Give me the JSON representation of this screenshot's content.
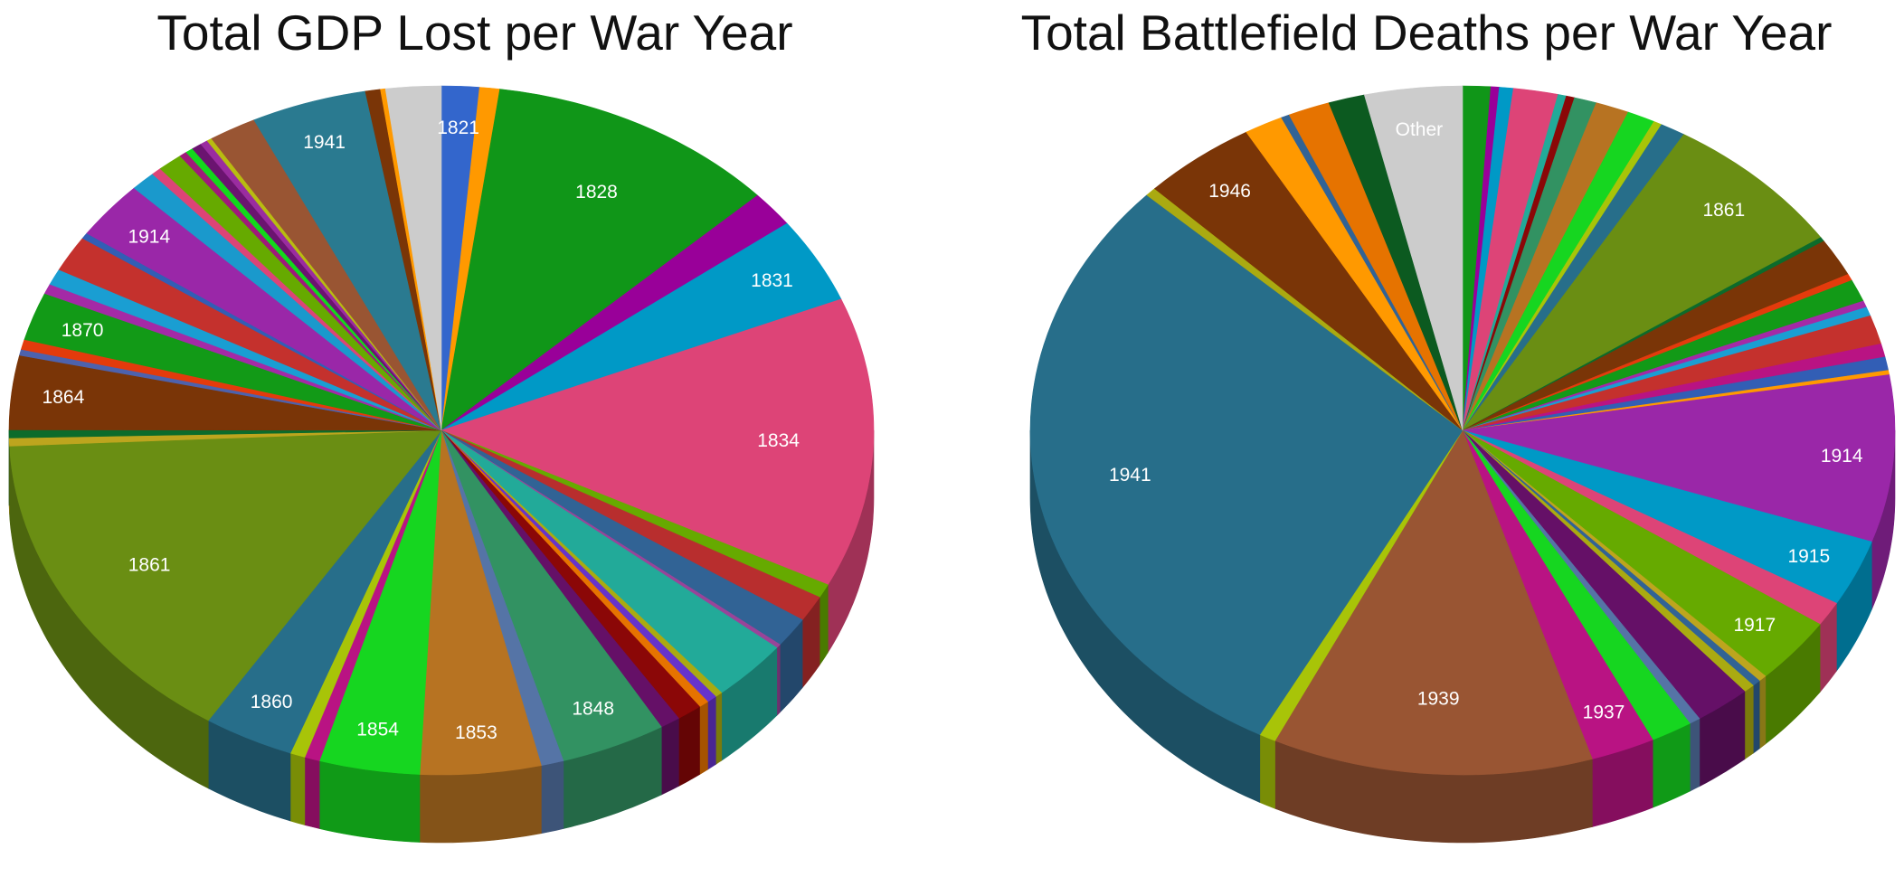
{
  "chart_data": [
    {
      "type": "pie",
      "title": "Total GDP Lost per War Year",
      "slices": [
        {
          "label": "1821",
          "value": 1.5,
          "color": "#3366cc",
          "show_label": true
        },
        {
          "label": "",
          "value": 0.8,
          "color": "#ff9900"
        },
        {
          "label": "1828",
          "value": 11.6,
          "color": "#109618",
          "show_label": true
        },
        {
          "label": "",
          "value": 1.8,
          "color": "#990099"
        },
        {
          "label": "1831",
          "value": 4.3,
          "color": "#0099c6",
          "show_label": true
        },
        {
          "label": "1834",
          "value": 14.5,
          "color": "#dd4477",
          "show_label": true
        },
        {
          "label": "",
          "value": 0.7,
          "color": "#66aa00"
        },
        {
          "label": "",
          "value": 1.3,
          "color": "#b82e2e"
        },
        {
          "label": "",
          "value": 1.5,
          "color": "#316395"
        },
        {
          "label": "",
          "value": 0.2,
          "color": "#994499"
        },
        {
          "label": "",
          "value": 3.1,
          "color": "#22aa99"
        },
        {
          "label": "",
          "value": 0.3,
          "color": "#aaaa11"
        },
        {
          "label": "",
          "value": 0.4,
          "color": "#6633cc"
        },
        {
          "label": "",
          "value": 0.4,
          "color": "#e67300"
        },
        {
          "label": "",
          "value": 1.0,
          "color": "#8b0707"
        },
        {
          "label": "",
          "value": 0.8,
          "color": "#651067"
        },
        {
          "label": "1848",
          "value": 4.2,
          "color": "#329262",
          "show_label": true
        },
        {
          "label": "",
          "value": 0.9,
          "color": "#5574a6"
        },
        {
          "label": "1853",
          "value": 4.8,
          "color": "#b77322",
          "show_label": true
        },
        {
          "label": "1854",
          "value": 4.0,
          "color": "#16d620",
          "show_label": true
        },
        {
          "label": "",
          "value": 0.6,
          "color": "#b91383"
        },
        {
          "label": "",
          "value": 0.6,
          "color": "#a8c408"
        },
        {
          "label": "1860",
          "value": 3.6,
          "color": "#276e8a",
          "show_label": true
        },
        {
          "label": "1861",
          "value": 16.2,
          "color": "#6a8e13",
          "show_label": true
        },
        {
          "label": "",
          "value": 0.4,
          "color": "#bda51e"
        },
        {
          "label": "",
          "value": 0.4,
          "color": "#0c6b2b"
        },
        {
          "label": "1864",
          "value": 3.7,
          "color": "#7a3507",
          "show_label": true
        },
        {
          "label": "",
          "value": 0.3,
          "color": "#4d62ad"
        },
        {
          "label": "",
          "value": 0.5,
          "color": "#e33b0c"
        },
        {
          "label": "1870",
          "value": 2.4,
          "color": "#129a17",
          "show_label": true
        },
        {
          "label": "",
          "value": 0.5,
          "color": "#a42aa6"
        },
        {
          "label": "",
          "value": 0.8,
          "color": "#1a9ed2"
        },
        {
          "label": "",
          "value": 1.8,
          "color": "#c4312d"
        },
        {
          "label": "",
          "value": 0.3,
          "color": "#325eb5"
        },
        {
          "label": "1914",
          "value": 2.9,
          "color": "#9a27a8",
          "show_label": true
        },
        {
          "label": "",
          "value": 1.0,
          "color": "#1a99cc"
        },
        {
          "label": "",
          "value": 0.4,
          "color": "#dd4477"
        },
        {
          "label": "",
          "value": 1.0,
          "color": "#66aa00"
        },
        {
          "label": "",
          "value": 0.3,
          "color": "#a0197a"
        },
        {
          "label": "",
          "value": 0.3,
          "color": "#12d81c"
        },
        {
          "label": "",
          "value": 0.4,
          "color": "#6b1470"
        },
        {
          "label": "",
          "value": 0.3,
          "color": "#9a2ca0"
        },
        {
          "label": "",
          "value": 0.2,
          "color": "#b8bc10"
        },
        {
          "label": "",
          "value": 1.9,
          "color": "#995533"
        },
        {
          "label": "1941",
          "value": 4.6,
          "color": "#2a7a90",
          "show_label": true
        },
        {
          "label": "",
          "value": 0.6,
          "color": "#7a3507"
        },
        {
          "label": "",
          "value": 0.2,
          "color": "#ff9900"
        },
        {
          "label": "",
          "value": 2.2,
          "color": "#cccccc"
        }
      ]
    },
    {
      "type": "pie",
      "title": "Total Battlefield Deaths per War Year",
      "slices": [
        {
          "label": "",
          "value": 1.0,
          "color": "#109618"
        },
        {
          "label": "",
          "value": 0.3,
          "color": "#990099"
        },
        {
          "label": "",
          "value": 0.5,
          "color": "#0099c6"
        },
        {
          "label": "",
          "value": 1.6,
          "color": "#dd4477"
        },
        {
          "label": "",
          "value": 0.3,
          "color": "#22aa99"
        },
        {
          "label": "",
          "value": 0.3,
          "color": "#8b0707"
        },
        {
          "label": "",
          "value": 0.8,
          "color": "#329262"
        },
        {
          "label": "",
          "value": 1.2,
          "color": "#b77322"
        },
        {
          "label": "",
          "value": 1.0,
          "color": "#16d620"
        },
        {
          "label": "",
          "value": 0.3,
          "color": "#a8c408"
        },
        {
          "label": "",
          "value": 0.9,
          "color": "#276e8a"
        },
        {
          "label": "1861",
          "value": 6.7,
          "color": "#6a8e13",
          "show_label": true
        },
        {
          "label": "",
          "value": 0.2,
          "color": "#0c6b2b"
        },
        {
          "label": "",
          "value": 1.7,
          "color": "#7a3507"
        },
        {
          "label": "",
          "value": 0.3,
          "color": "#e33b0c"
        },
        {
          "label": "",
          "value": 1.0,
          "color": "#129a17"
        },
        {
          "label": "",
          "value": 0.3,
          "color": "#a42aa6"
        },
        {
          "label": "",
          "value": 0.4,
          "color": "#1a9ed2"
        },
        {
          "label": "",
          "value": 1.3,
          "color": "#c4312d"
        },
        {
          "label": "",
          "value": 0.6,
          "color": "#b91383"
        },
        {
          "label": "",
          "value": 0.6,
          "color": "#325eb5"
        },
        {
          "label": "",
          "value": 0.2,
          "color": "#ff9900"
        },
        {
          "label": "1914",
          "value": 7.5,
          "color": "#9a27a8",
          "show_label": true
        },
        {
          "label": "1915",
          "value": 3.0,
          "color": "#0099c6",
          "show_label": true
        },
        {
          "label": "",
          "value": 1.1,
          "color": "#dd4477"
        },
        {
          "label": "1917",
          "value": 3.0,
          "color": "#66aa00",
          "show_label": true
        },
        {
          "label": "",
          "value": 0.3,
          "color": "#bda51e"
        },
        {
          "label": "",
          "value": 0.3,
          "color": "#316395"
        },
        {
          "label": "",
          "value": 0.4,
          "color": "#aaaa11"
        },
        {
          "label": "",
          "value": 2.0,
          "color": "#651067"
        },
        {
          "label": "",
          "value": 0.4,
          "color": "#5574a6"
        },
        {
          "label": "",
          "value": 1.5,
          "color": "#16d620"
        },
        {
          "label": "1937",
          "value": 2.3,
          "color": "#b91383",
          "show_label": true
        },
        {
          "label": "1939",
          "value": 11.5,
          "color": "#995533",
          "show_label": true
        },
        {
          "label": "",
          "value": 0.6,
          "color": "#a8c408"
        },
        {
          "label": "1941",
          "value": 28.0,
          "color": "#276e8a",
          "show_label": true
        },
        {
          "label": "",
          "value": 0.4,
          "color": "#aaaa11"
        },
        {
          "label": "1946",
          "value": 4.1,
          "color": "#7a3507",
          "show_label": true
        },
        {
          "label": "",
          "value": 1.4,
          "color": "#ff9900"
        },
        {
          "label": "",
          "value": 0.3,
          "color": "#316395"
        },
        {
          "label": "",
          "value": 1.5,
          "color": "#e67300"
        },
        {
          "label": "",
          "value": 1.3,
          "color": "#0c5a20"
        },
        {
          "label": "Other",
          "value": 3.5,
          "color": "#cccccc",
          "show_label": true
        }
      ]
    }
  ]
}
